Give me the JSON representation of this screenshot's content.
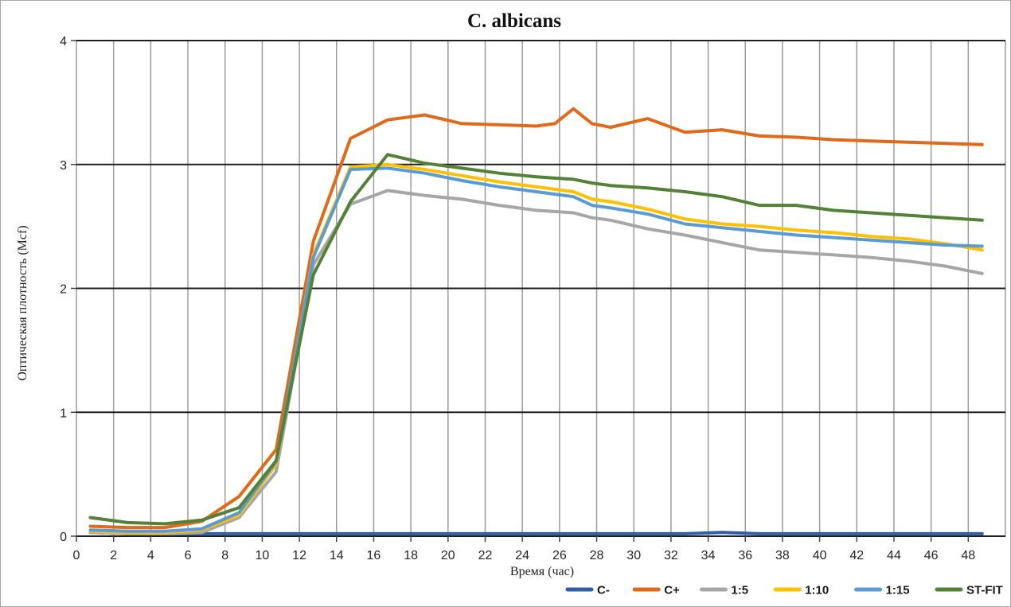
{
  "chart_data": {
    "type": "line",
    "title": "C. albicans",
    "xlabel": "Время (час)",
    "ylabel": "Оптическая плотность (Mcf)",
    "xlim": [
      0,
      50
    ],
    "ylim": [
      0,
      4
    ],
    "x_tick_step": 2,
    "x_tick_max_label": 48,
    "y_ticks": [
      0,
      1,
      2,
      3,
      4
    ],
    "grid": {
      "vertical_color": "#9b9b9b",
      "horizontal_color": "#1f1f1f",
      "vertical_every_hours": 2
    },
    "legend_position": "bottom-right",
    "x": [
      0.75,
      2.75,
      4.75,
      6.75,
      8.75,
      10.75,
      12.75,
      14.75,
      16.75,
      18.75,
      20.75,
      22.75,
      24.75,
      25.75,
      26.75,
      27.75,
      28.75,
      30.75,
      32.75,
      34.75,
      36.75,
      38.75,
      40.75,
      42.75,
      44.75,
      46.75,
      48.75
    ],
    "series": [
      {
        "name": "C-",
        "color": "#2E5EA8",
        "values": [
          0.03,
          0.02,
          0.02,
          0.02,
          0.02,
          0.02,
          0.02,
          0.02,
          0.02,
          0.02,
          0.02,
          0.02,
          0.02,
          0.02,
          0.02,
          0.02,
          0.02,
          0.02,
          0.02,
          0.03,
          0.02,
          0.02,
          0.02,
          0.02,
          0.02,
          0.02,
          0.02
        ]
      },
      {
        "name": "C+",
        "color": "#E0691A",
        "values": [
          0.08,
          0.07,
          0.07,
          0.12,
          0.32,
          0.7,
          2.38,
          3.21,
          3.36,
          3.4,
          3.33,
          3.32,
          3.31,
          3.33,
          3.45,
          3.33,
          3.3,
          3.37,
          3.26,
          3.28,
          3.23,
          3.22,
          3.2,
          3.19,
          3.18,
          3.17,
          3.16
        ]
      },
      {
        "name": "1:5",
        "color": "#A6A6A6",
        "values": [
          0.03,
          0.02,
          0.02,
          0.03,
          0.15,
          0.52,
          2.19,
          2.68,
          2.79,
          2.75,
          2.72,
          2.67,
          2.63,
          2.62,
          2.61,
          2.57,
          2.55,
          2.48,
          2.43,
          2.37,
          2.31,
          2.29,
          2.27,
          2.25,
          2.22,
          2.18,
          2.12
        ]
      },
      {
        "name": "1:10",
        "color": "#FFC000",
        "values": [
          0.04,
          0.03,
          0.03,
          0.05,
          0.17,
          0.58,
          2.27,
          2.98,
          3.0,
          2.96,
          2.91,
          2.86,
          2.82,
          2.8,
          2.78,
          2.72,
          2.7,
          2.64,
          2.56,
          2.52,
          2.5,
          2.47,
          2.45,
          2.42,
          2.4,
          2.36,
          2.31
        ]
      },
      {
        "name": "1:15",
        "color": "#5B9BD5",
        "values": [
          0.05,
          0.04,
          0.04,
          0.06,
          0.19,
          0.6,
          2.25,
          2.96,
          2.97,
          2.93,
          2.87,
          2.82,
          2.78,
          2.76,
          2.74,
          2.67,
          2.65,
          2.6,
          2.52,
          2.49,
          2.46,
          2.43,
          2.41,
          2.39,
          2.37,
          2.35,
          2.34
        ]
      },
      {
        "name": "ST-FIT",
        "color": "#538135",
        "values": [
          0.15,
          0.11,
          0.1,
          0.13,
          0.23,
          0.61,
          2.11,
          2.7,
          3.08,
          3.01,
          2.97,
          2.93,
          2.9,
          2.89,
          2.88,
          2.85,
          2.83,
          2.81,
          2.78,
          2.74,
          2.67,
          2.67,
          2.63,
          2.61,
          2.59,
          2.57,
          2.55
        ]
      }
    ]
  }
}
